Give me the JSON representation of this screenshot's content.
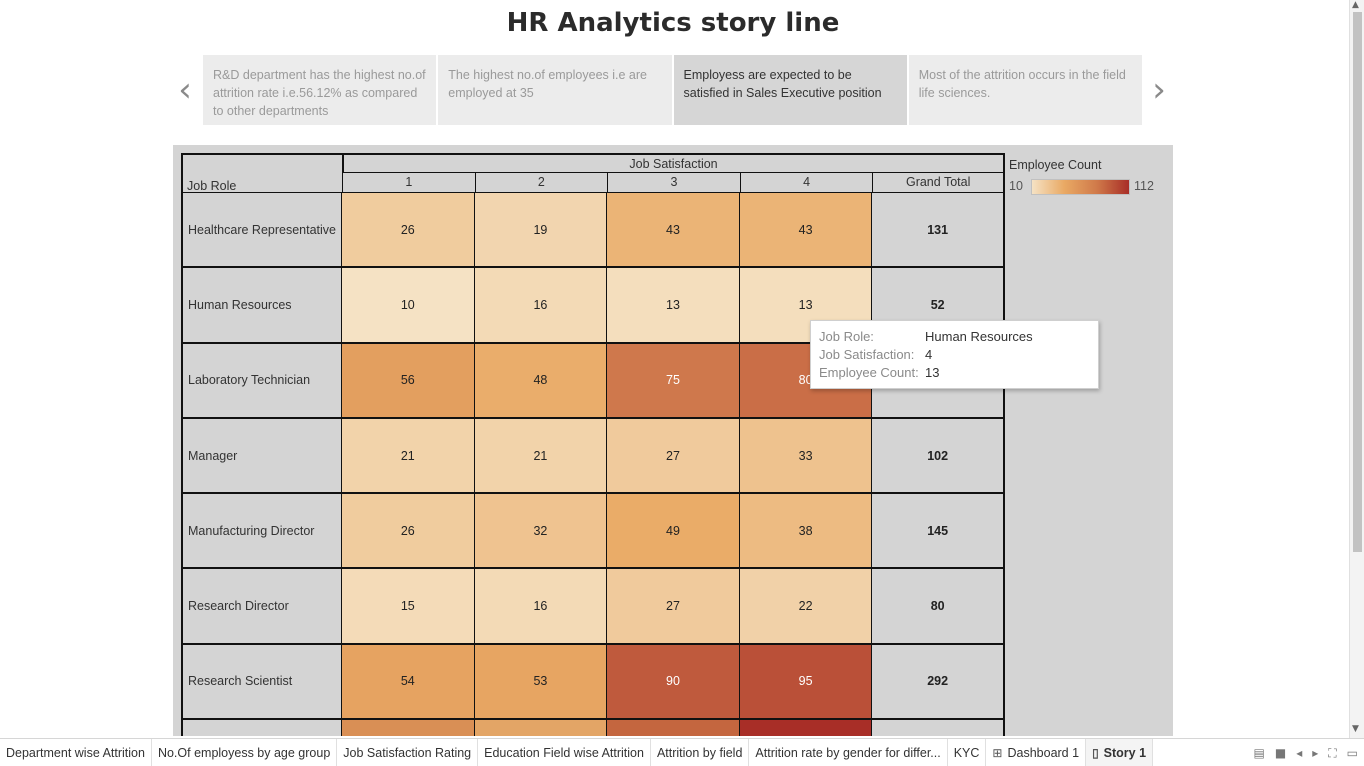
{
  "title": "HR Analytics story line",
  "story_points": [
    "R&D department has the highest no.of attrition rate i.e.56.12% as compared to other departments",
    "The highest no.of employees i.e are employed at 35",
    "Employess are expected to be satisfied in Sales Executive position",
    "Most of the attrition occurs in the field life sciences."
  ],
  "nav": {
    "prev": "‹",
    "next": "›"
  },
  "crosstab": {
    "column_group_header": "Job Satisfaction",
    "row_header": "Job Role",
    "columns": [
      "1",
      "2",
      "3",
      "4",
      "Grand Total"
    ],
    "rows": [
      {
        "label": "Healthcare Representative",
        "values": [
          "26",
          "19",
          "43",
          "43"
        ],
        "total": "131"
      },
      {
        "label": "Human Resources",
        "values": [
          "10",
          "16",
          "13",
          "13"
        ],
        "total": "52"
      },
      {
        "label": "Laboratory Technician",
        "values": [
          "56",
          "48",
          "75",
          "80"
        ],
        "total": ""
      },
      {
        "label": "Manager",
        "values": [
          "21",
          "21",
          "27",
          "33"
        ],
        "total": "102"
      },
      {
        "label": "Manufacturing Director",
        "values": [
          "26",
          "32",
          "49",
          "38"
        ],
        "total": "145"
      },
      {
        "label": "Research Director",
        "values": [
          "15",
          "16",
          "27",
          "22"
        ],
        "total": "80"
      },
      {
        "label": "Research Scientist",
        "values": [
          "54",
          "53",
          "90",
          "95"
        ],
        "total": "292"
      }
    ],
    "partial_row_colors": [
      "#d98f55",
      "#e3a566",
      "#c4663f",
      "#a82e27"
    ]
  },
  "legend": {
    "title": "Employee Count",
    "min": "10",
    "max": "112"
  },
  "color_scale": {
    "low": "#f5e2c4",
    "mid": "#e9a964",
    "high": "#a82e27"
  },
  "tooltip": {
    "items": [
      {
        "key": "Job Role:",
        "value": "Human Resources"
      },
      {
        "key": "Job Satisfaction:",
        "value": "4"
      },
      {
        "key": "Employee Count:",
        "value": "13"
      }
    ]
  },
  "tabs": [
    {
      "label": "Department wise Attrition",
      "icon": ""
    },
    {
      "label": "No.Of employess by age group",
      "icon": ""
    },
    {
      "label": "Job Satisfaction Rating",
      "icon": ""
    },
    {
      "label": "Education Field wise Attrition",
      "icon": ""
    },
    {
      "label": "Attrition by field",
      "icon": ""
    },
    {
      "label": "Attrition rate by gender for differ...",
      "icon": ""
    },
    {
      "label": "KYC",
      "icon": ""
    },
    {
      "label": "Dashboard 1",
      "icon": "dashboard-icon"
    },
    {
      "label": "Story 1",
      "icon": "story-icon"
    }
  ],
  "active_tab": "Story 1",
  "active_story_point": 2
}
